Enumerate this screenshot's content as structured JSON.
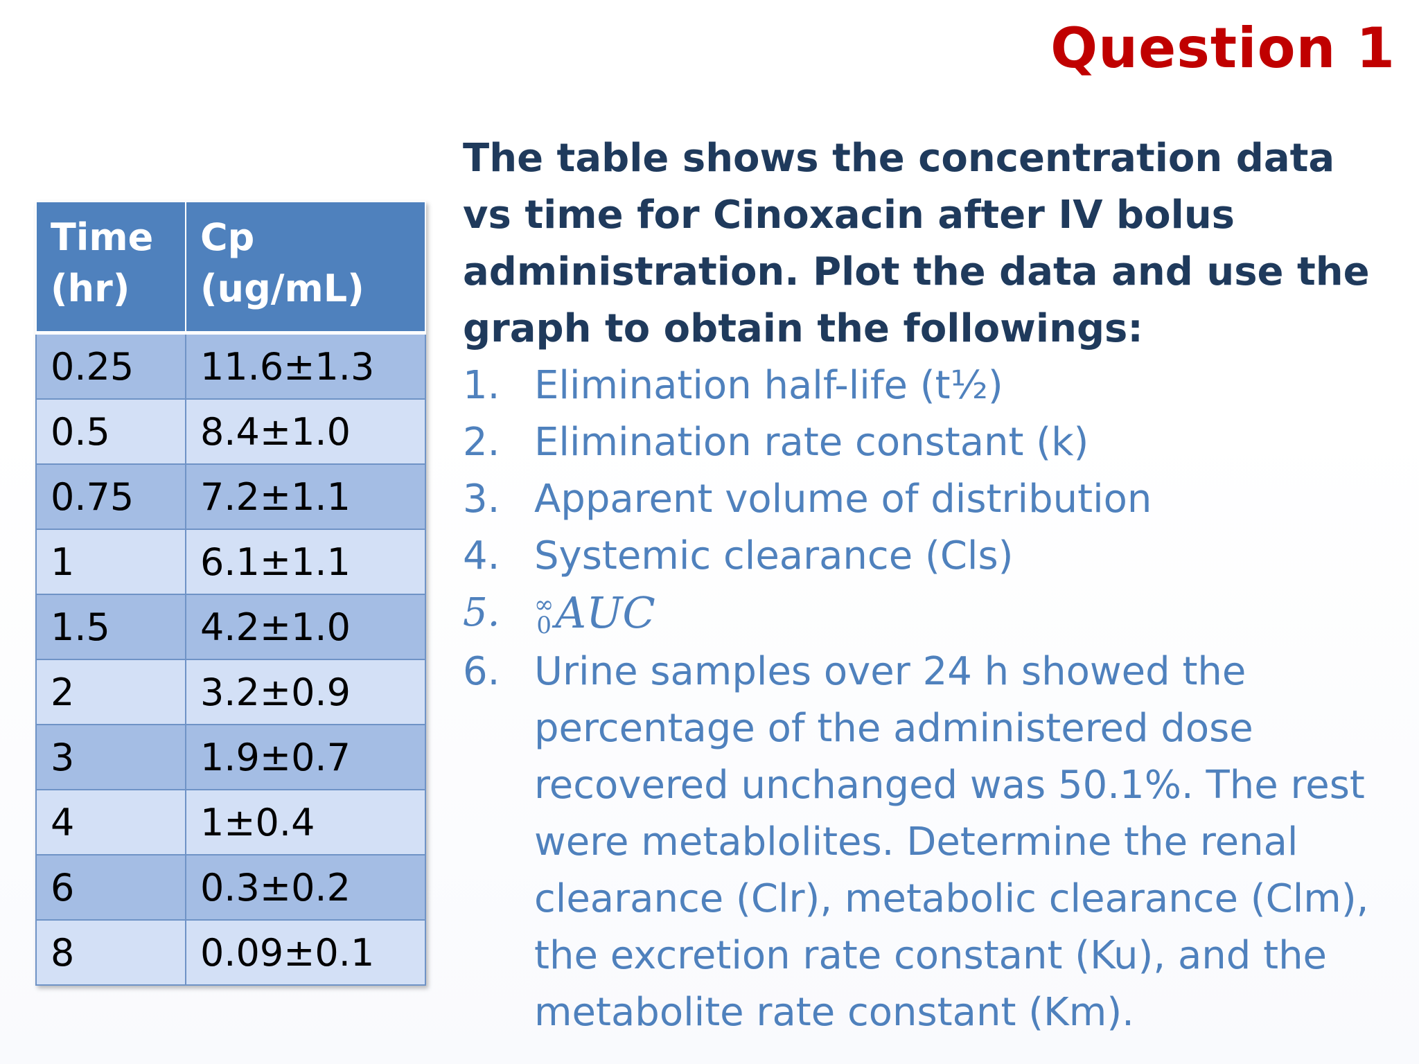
{
  "slide": {
    "title": "Question 1"
  },
  "table": {
    "headers": [
      "Time (hr)",
      "Cp (ug/mL)"
    ],
    "rows": [
      [
        "0.25",
        "11.6±1.3"
      ],
      [
        "0.5",
        "8.4±1.0"
      ],
      [
        "0.75",
        "7.2±1.1"
      ],
      [
        "1",
        "6.1±1.1"
      ],
      [
        "1.5",
        "4.2±1.0"
      ],
      [
        "2",
        "3.2±0.9"
      ],
      [
        "3",
        "1.9±0.7"
      ],
      [
        "4",
        "1±0.4"
      ],
      [
        "6",
        "0.3±0.2"
      ],
      [
        "8",
        "0.09±0.1"
      ]
    ]
  },
  "question": {
    "intro": "The table shows the concentration data vs time for Cinoxacin after IV bolus administration. Plot the data and use the graph to obtain the followings:",
    "items": [
      {
        "num": "1.",
        "text": "Elimination half-life (t½)"
      },
      {
        "num": "2.",
        "text": "Elimination rate constant (k)"
      },
      {
        "num": "3.",
        "text": "Apparent volume of distribution"
      },
      {
        "num": "4.",
        "text": "Systemic clearance (Cls)"
      },
      {
        "num": "5.",
        "upper": "∞",
        "lower": "0",
        "text": "AUC"
      },
      {
        "num": "6.",
        "text": "Urine samples over 24 h showed the percentage of the administered dose recovered unchanged was 50.1%. The rest were metablolites. Determine the renal clearance (Clr), metabolic clearance (Clm), the excretion rate constant (Ku), and the metabolite rate constant (Km)."
      }
    ]
  },
  "colors": {
    "title": "#c00000",
    "intro": "#1f3a5c",
    "list": "#4f81bd",
    "table_header": "#4f81bd",
    "row_dark": "#a4bde4",
    "row_light": "#d3e0f6"
  }
}
